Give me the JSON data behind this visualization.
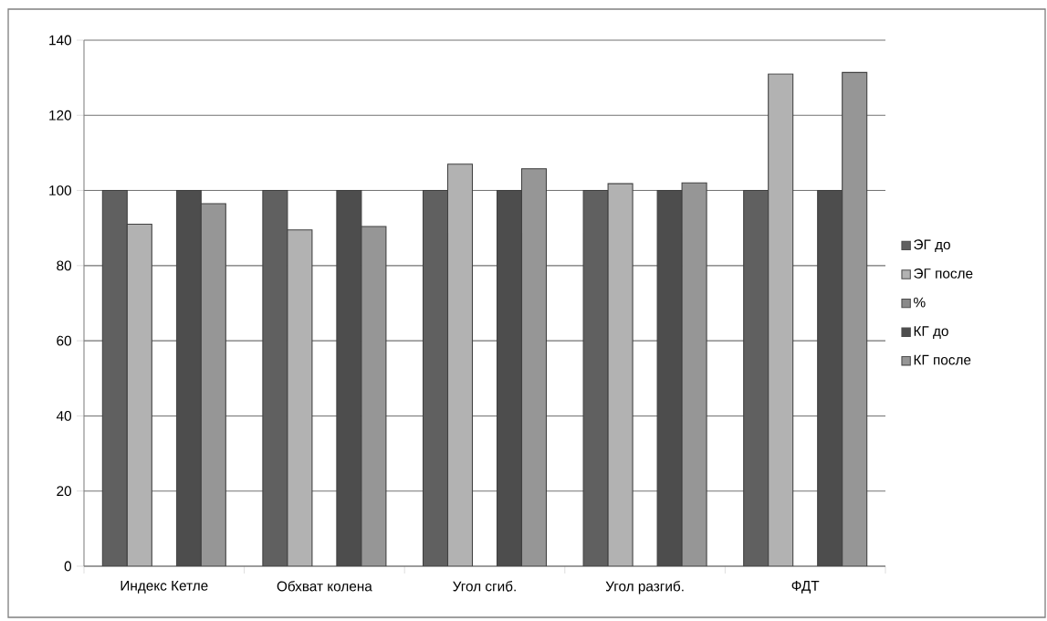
{
  "chart_data": {
    "type": "bar",
    "categories": [
      "Индекс Кетле",
      "Обхват колена",
      "Угол сгиб.",
      "Угол разгиб.",
      "ФДТ"
    ],
    "series": [
      {
        "name": "ЭГ до",
        "color": "#606060",
        "values": [
          100,
          100,
          100,
          100,
          100
        ]
      },
      {
        "name": "ЭГ после",
        "color": "#b2b2b2",
        "values": [
          91.0,
          89.5,
          107.0,
          101.8,
          131.0
        ]
      },
      {
        "name": "%",
        "color": "#8a8a8a",
        "values": [
          null,
          null,
          null,
          null,
          null
        ]
      },
      {
        "name": "КГ до",
        "color": "#4d4d4d",
        "values": [
          100,
          100,
          100,
          100,
          100
        ]
      },
      {
        "name": "КГ после",
        "color": "#969696",
        "values": [
          96.5,
          90.4,
          105.8,
          102.0,
          131.4
        ]
      }
    ],
    "ylim": [
      0,
      140
    ],
    "yticks": [
      0,
      20,
      40,
      60,
      80,
      100,
      120,
      140
    ],
    "grid": "y",
    "legend": "right"
  }
}
